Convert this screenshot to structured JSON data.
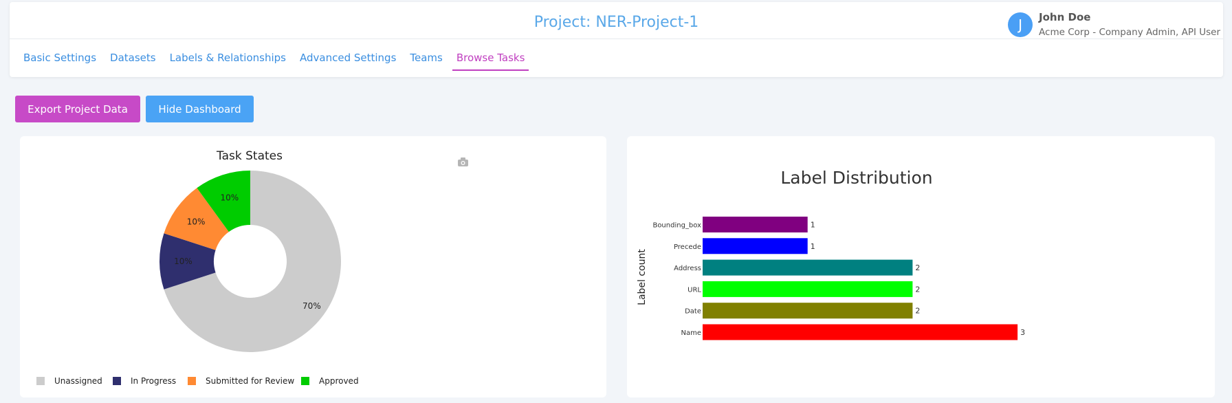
{
  "header": {
    "title": "Project: NER-Project-1",
    "user": {
      "initial": "J",
      "name": "John Doe",
      "role": "Acme Corp - Company Admin, API User"
    }
  },
  "tabs": [
    {
      "label": "Basic Settings",
      "active": false
    },
    {
      "label": "Datasets",
      "active": false
    },
    {
      "label": "Labels & Relationships",
      "active": false
    },
    {
      "label": "Advanced Settings",
      "active": false
    },
    {
      "label": "Teams",
      "active": false
    },
    {
      "label": "Browse Tasks",
      "active": true
    }
  ],
  "actions": {
    "export_label": "Export Project Data",
    "hide_label": "Hide Dashboard"
  },
  "colors": {
    "accent_purple": "#c74ac7",
    "accent_blue": "#4aa3f5",
    "title_blue": "#5aa8e8"
  },
  "task_states_chart": {
    "camera_icon": "camera-icon",
    "chart_data": {
      "type": "pie",
      "title": "Task States",
      "donut": true,
      "slices": [
        {
          "label": "Unassigned",
          "value": 70,
          "display": "70%",
          "color": "#cccccc"
        },
        {
          "label": "In Progress",
          "value": 10,
          "display": "10%",
          "color": "#2f2f6e"
        },
        {
          "label": "Submitted for Review",
          "value": 10,
          "display": "10%",
          "color": "#ff8a33"
        },
        {
          "label": "Approved",
          "value": 10,
          "display": "10%",
          "color": "#00cc00"
        }
      ],
      "legend_position": "bottom"
    }
  },
  "label_distribution_chart": {
    "chart_data": {
      "type": "bar",
      "orientation": "horizontal",
      "title": "Label Distribution",
      "ylabel": "Label count",
      "categories": [
        "Bounding_box",
        "Precede",
        "Address",
        "URL",
        "Date",
        "Name"
      ],
      "values": [
        1,
        1,
        2,
        2,
        2,
        3
      ],
      "colors": [
        "#800080",
        "#0000ff",
        "#008080",
        "#00ff00",
        "#808000",
        "#ff0000"
      ]
    }
  }
}
